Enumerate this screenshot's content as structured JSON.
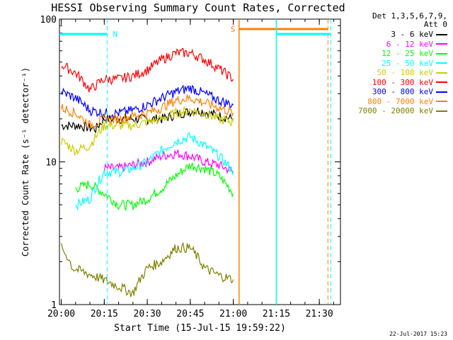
{
  "chart_data": {
    "type": "line",
    "title": "HESSI Observing Summary Count Rates, Corrected",
    "xlabel": "Start Time (15-Jul-15 19:59:22)",
    "ylabel": "Corrected Count Rate (s⁻¹ detector⁻¹)",
    "y_scale": "log",
    "ylim": [
      1,
      100
    ],
    "x_tick_labels": [
      "20:00",
      "20:15",
      "20:30",
      "20:45",
      "21:00",
      "21:15",
      "21:30"
    ],
    "y_tick_labels": [
      "1",
      "10",
      "100"
    ],
    "legend_header": [
      "Det 1,3,5,6,7,9,",
      "Att 0"
    ],
    "legend_position": "right",
    "series": [
      {
        "name": "3 - 6 keV",
        "color": "#000000",
        "x": [
          "20:00",
          "20:06",
          "20:12",
          "20:15",
          "20:25",
          "20:35",
          "20:42",
          "20:48",
          "20:55",
          "21:00"
        ],
        "values": [
          18,
          18,
          17,
          20,
          20,
          20,
          22,
          23,
          21,
          20
        ]
      },
      {
        "name": "6 - 12 keV",
        "color": "#ff00ff",
        "x": [
          "20:15",
          "20:20",
          "20:25",
          "20:30",
          "20:35",
          "20:40",
          "20:45",
          "20:50",
          "20:55",
          "21:00"
        ],
        "values": [
          9,
          9,
          9.5,
          10,
          11,
          11.5,
          11,
          10,
          9.5,
          8.5
        ]
      },
      {
        "name": "12 - 25 keV",
        "color": "#00ff00",
        "x": [
          "20:05",
          "20:10",
          "20:15",
          "20:20",
          "20:25",
          "20:30",
          "20:35",
          "20:40",
          "20:45",
          "20:50",
          "20:55",
          "21:00"
        ],
        "values": [
          6.5,
          7,
          6,
          5,
          5,
          5.5,
          6.5,
          8,
          9.5,
          9,
          8,
          6
        ]
      },
      {
        "name": "25 - 50 keV",
        "color": "#00ffff",
        "x": [
          "20:05",
          "20:10",
          "20:15",
          "20:20",
          "20:25",
          "20:30",
          "20:35",
          "20:40",
          "20:45",
          "20:50",
          "20:55",
          "21:00"
        ],
        "values": [
          5,
          5.5,
          8.5,
          8.5,
          9,
          10,
          12,
          14,
          15,
          13,
          11,
          8.5
        ]
      },
      {
        "name": "50 - 100 keV",
        "color": "#cccc00",
        "x": [
          "20:00",
          "20:05",
          "20:10",
          "20:15",
          "20:20",
          "20:25",
          "20:30",
          "20:35",
          "20:40",
          "20:45",
          "20:50",
          "20:55",
          "21:00"
        ],
        "values": [
          14,
          12,
          13,
          18,
          18,
          18,
          19,
          20,
          22,
          23,
          22,
          20,
          19
        ]
      },
      {
        "name": "100 - 300 keV",
        "color": "#ff0000",
        "x": [
          "20:00",
          "20:05",
          "20:10",
          "20:15",
          "20:20",
          "20:25",
          "20:30",
          "20:35",
          "20:40",
          "20:45",
          "20:50",
          "20:55",
          "21:00"
        ],
        "values": [
          48,
          42,
          32,
          38,
          38,
          40,
          44,
          52,
          58,
          58,
          52,
          45,
          38
        ]
      },
      {
        "name": "300 - 800 keV",
        "color": "#0000ff",
        "x": [
          "20:00",
          "20:05",
          "20:10",
          "20:15",
          "20:20",
          "20:25",
          "20:30",
          "20:35",
          "20:40",
          "20:45",
          "20:50",
          "20:55",
          "21:00"
        ],
        "values": [
          31,
          28,
          23,
          22,
          22,
          23,
          25,
          28,
          31,
          33,
          30,
          27,
          25
        ]
      },
      {
        "name": "800 - 7000 keV",
        "color": "#ff8000",
        "x": [
          "20:00",
          "20:05",
          "20:10",
          "20:15",
          "20:20",
          "20:25",
          "20:30",
          "20:35",
          "20:40",
          "20:45",
          "20:50",
          "20:55",
          "21:00"
        ],
        "values": [
          24,
          22,
          18,
          20,
          20,
          21,
          22,
          24,
          27,
          28,
          26,
          24,
          22
        ]
      },
      {
        "name": "7000 - 20000 keV",
        "color": "#808000",
        "x": [
          "20:00",
          "20:02",
          "20:04",
          "20:25",
          "20:30",
          "20:35",
          "20:40",
          "20:45",
          "20:50",
          "20:55",
          "21:00"
        ],
        "values": [
          2.5,
          2.2,
          1.8,
          1.2,
          1.8,
          2.0,
          2.5,
          2.5,
          1.8,
          1.6,
          1.5
        ]
      }
    ],
    "annotations": [
      {
        "text": "N",
        "color": "#00ffff"
      },
      {
        "text": "S",
        "color": "#ff8000"
      }
    ],
    "grid": false
  },
  "footer_date": "22-Jul-2017 15:23"
}
